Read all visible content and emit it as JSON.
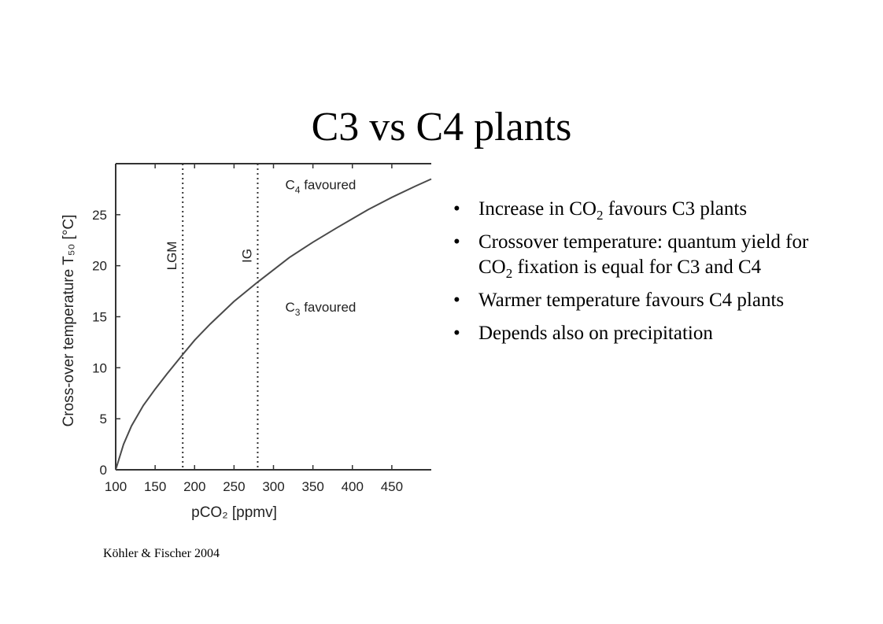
{
  "slide": {
    "title": "C3 vs C4 plants",
    "citation": "Köhler & Fischer 2004",
    "bullet_char": "•",
    "bullets": [
      {
        "parts": [
          {
            "text": "Increase in CO",
            "sub": false
          },
          {
            "text": "2",
            "sub": true
          },
          {
            "text": " favours C3 plants",
            "sub": false
          }
        ]
      },
      {
        "parts": [
          {
            "text": "Crossover temperature: quantum yield for CO",
            "sub": false
          },
          {
            "text": "2",
            "sub": true
          },
          {
            "text": " fixation is equal for C3 and C4",
            "sub": false
          }
        ]
      },
      {
        "parts": [
          {
            "text": "Warmer temperature favours C4 plants",
            "sub": false
          }
        ]
      },
      {
        "parts": [
          {
            "text": "Depends also on precipitation",
            "sub": false
          }
        ]
      }
    ]
  },
  "chart_data": {
    "type": "line",
    "xlabel": "pCO₂ [ppmv]",
    "ylabel": "Cross-over temperature T₅₀ [°C]",
    "xlim": [
      100,
      500
    ],
    "ylim": [
      0,
      30
    ],
    "xticks": [
      100,
      150,
      200,
      250,
      300,
      350,
      400,
      450
    ],
    "yticks": [
      0,
      5,
      10,
      15,
      20,
      25
    ],
    "series": [
      {
        "x": [
          100,
          110,
          120,
          135,
          150,
          165,
          185,
          200,
          220,
          250,
          280,
          300,
          320,
          350,
          380,
          400,
          420,
          450,
          480,
          500
        ],
        "y": [
          0,
          2.5,
          4.3,
          6.3,
          7.9,
          9.4,
          11.3,
          12.7,
          14.3,
          16.5,
          18.4,
          19.6,
          20.8,
          22.3,
          23.7,
          24.6,
          25.5,
          26.7,
          27.8,
          28.5
        ],
        "color": "#4a4a4a"
      }
    ],
    "reference_lines": [
      {
        "x": 185,
        "label": "LGM"
      },
      {
        "x": 280,
        "label": "IG"
      }
    ],
    "region_labels": [
      {
        "text": "C",
        "sub": "4",
        "suffix": " favoured",
        "x": 300,
        "y": 27.5
      },
      {
        "text": "C",
        "sub": "3",
        "suffix": " favoured",
        "x": 300,
        "y": 15.5
      }
    ],
    "grid": false
  }
}
